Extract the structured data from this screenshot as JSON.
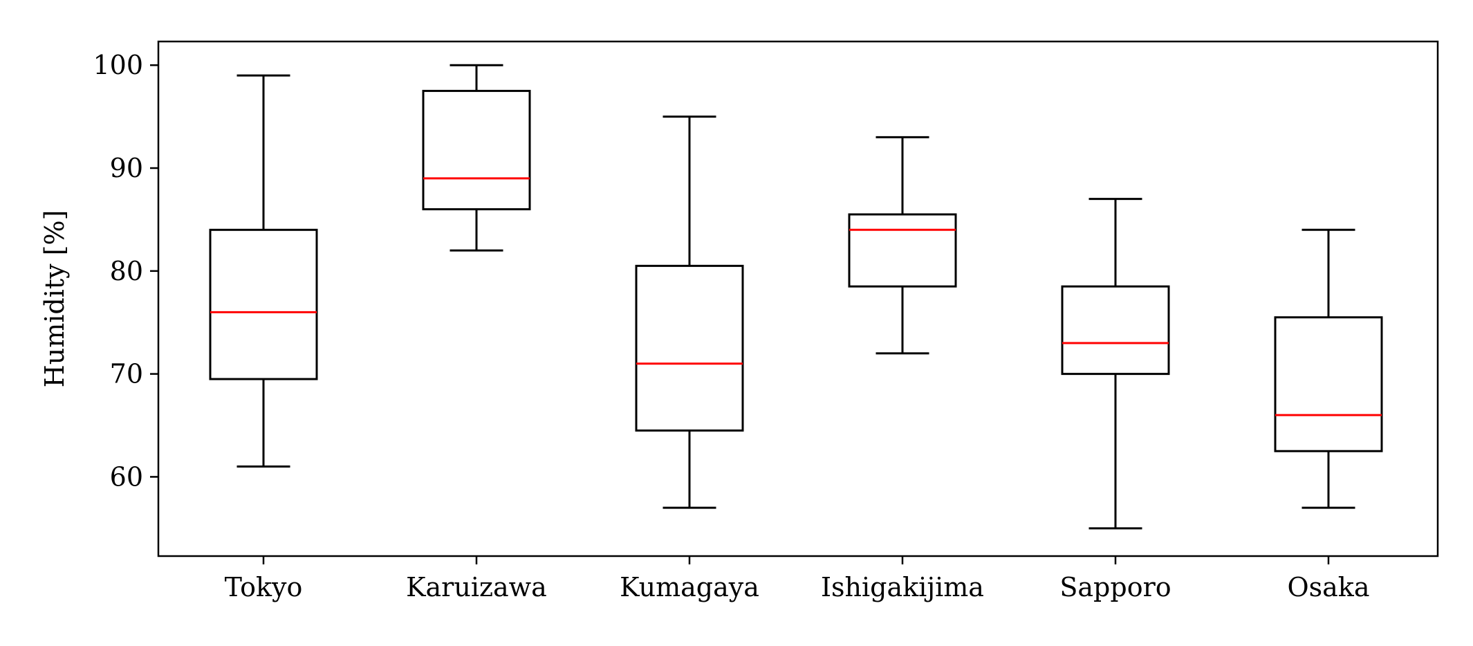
{
  "chart_data": {
    "type": "box",
    "title": "",
    "xlabel": "",
    "ylabel": "Humidity [%]",
    "ylim": [
      52.3,
      102.3
    ],
    "yticks": [
      60,
      70,
      80,
      90,
      100
    ],
    "grid": false,
    "categories": [
      "Tokyo",
      "Karuizawa",
      "Kumagaya",
      "Ishigakijima",
      "Sapporo",
      "Osaka"
    ],
    "boxes": [
      {
        "category": "Tokyo",
        "whisker_low": 61,
        "q1": 69.5,
        "median": 76,
        "q3": 84,
        "whisker_high": 99
      },
      {
        "category": "Karuizawa",
        "whisker_low": 82,
        "q1": 86,
        "median": 89,
        "q3": 97.5,
        "whisker_high": 100
      },
      {
        "category": "Kumagaya",
        "whisker_low": 57,
        "q1": 64.5,
        "median": 71,
        "q3": 80.5,
        "whisker_high": 95
      },
      {
        "category": "Ishigakijima",
        "whisker_low": 72,
        "q1": 78.5,
        "median": 84,
        "q3": 85.5,
        "whisker_high": 93
      },
      {
        "category": "Sapporo",
        "whisker_low": 55,
        "q1": 70,
        "median": 73,
        "q3": 78.5,
        "whisker_high": 87
      },
      {
        "category": "Osaka",
        "whisker_low": 57,
        "q1": 62.5,
        "median": 66,
        "q3": 75.5,
        "whisker_high": 84
      }
    ],
    "colors": {
      "box": "#000000",
      "median": "#ff0000",
      "axes": "#000000"
    }
  }
}
